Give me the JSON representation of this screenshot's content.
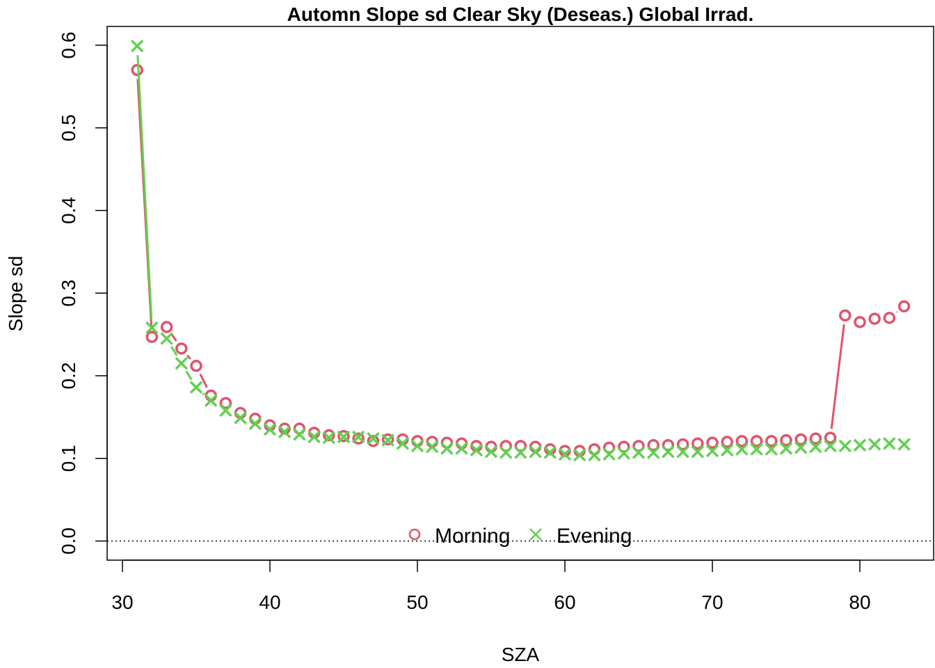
{
  "chart_data": {
    "type": "scatter",
    "title": "Automn Slope sd Clear Sky (Deseas.) Global Irrad.",
    "xlabel": "SZA",
    "ylabel": "Slope sd",
    "xlim": [
      30,
      83
    ],
    "ylim": [
      0.0,
      0.6
    ],
    "x_ticks": [
      "30",
      "40",
      "50",
      "60",
      "70",
      "80"
    ],
    "y_ticks": [
      "0.0",
      "0.1",
      "0.2",
      "0.3",
      "0.4",
      "0.5",
      "0.6"
    ],
    "reference_line": 0.0,
    "legend_position": "bottom-center",
    "series": [
      {
        "name": "Morning",
        "color": "#DF536B",
        "marker": "circle",
        "x": [
          31,
          32,
          33,
          34,
          35,
          36,
          37,
          38,
          39,
          40,
          41,
          42,
          43,
          44,
          45,
          46,
          47,
          48,
          49,
          50,
          51,
          52,
          53,
          54,
          55,
          56,
          57,
          58,
          59,
          60,
          61,
          62,
          63,
          64,
          65,
          66,
          67,
          68,
          69,
          70,
          71,
          72,
          73,
          74,
          75,
          76,
          77,
          78,
          79,
          80,
          81,
          82,
          83
        ],
        "values": [
          0.57,
          0.247,
          0.259,
          0.233,
          0.212,
          0.176,
          0.167,
          0.155,
          0.148,
          0.14,
          0.136,
          0.136,
          0.131,
          0.128,
          0.127,
          0.124,
          0.121,
          0.123,
          0.123,
          0.121,
          0.12,
          0.119,
          0.118,
          0.115,
          0.114,
          0.115,
          0.115,
          0.114,
          0.111,
          0.109,
          0.109,
          0.111,
          0.113,
          0.114,
          0.115,
          0.116,
          0.116,
          0.117,
          0.118,
          0.119,
          0.12,
          0.121,
          0.121,
          0.121,
          0.122,
          0.123,
          0.124,
          0.125,
          0.273,
          0.265,
          0.269,
          0.27,
          0.284
        ]
      },
      {
        "name": "Evening",
        "color": "#61D04F",
        "marker": "cross",
        "x": [
          31,
          32,
          33,
          34,
          35,
          36,
          37,
          38,
          39,
          40,
          41,
          42,
          43,
          44,
          45,
          46,
          47,
          48,
          49,
          50,
          51,
          52,
          53,
          54,
          55,
          56,
          57,
          58,
          59,
          60,
          61,
          62,
          63,
          64,
          65,
          66,
          67,
          68,
          69,
          70,
          71,
          72,
          73,
          74,
          75,
          76,
          77,
          78,
          79,
          80,
          81,
          82,
          83
        ],
        "values": [
          0.599,
          0.258,
          0.245,
          0.215,
          0.186,
          0.17,
          0.158,
          0.149,
          0.142,
          0.135,
          0.132,
          0.129,
          0.126,
          0.125,
          0.126,
          0.126,
          0.124,
          0.122,
          0.118,
          0.115,
          0.114,
          0.112,
          0.112,
          0.11,
          0.108,
          0.107,
          0.107,
          0.108,
          0.107,
          0.105,
          0.104,
          0.104,
          0.105,
          0.106,
          0.107,
          0.107,
          0.108,
          0.108,
          0.108,
          0.109,
          0.11,
          0.111,
          0.111,
          0.111,
          0.112,
          0.113,
          0.114,
          0.115,
          0.115,
          0.116,
          0.117,
          0.118,
          0.117
        ]
      }
    ]
  }
}
